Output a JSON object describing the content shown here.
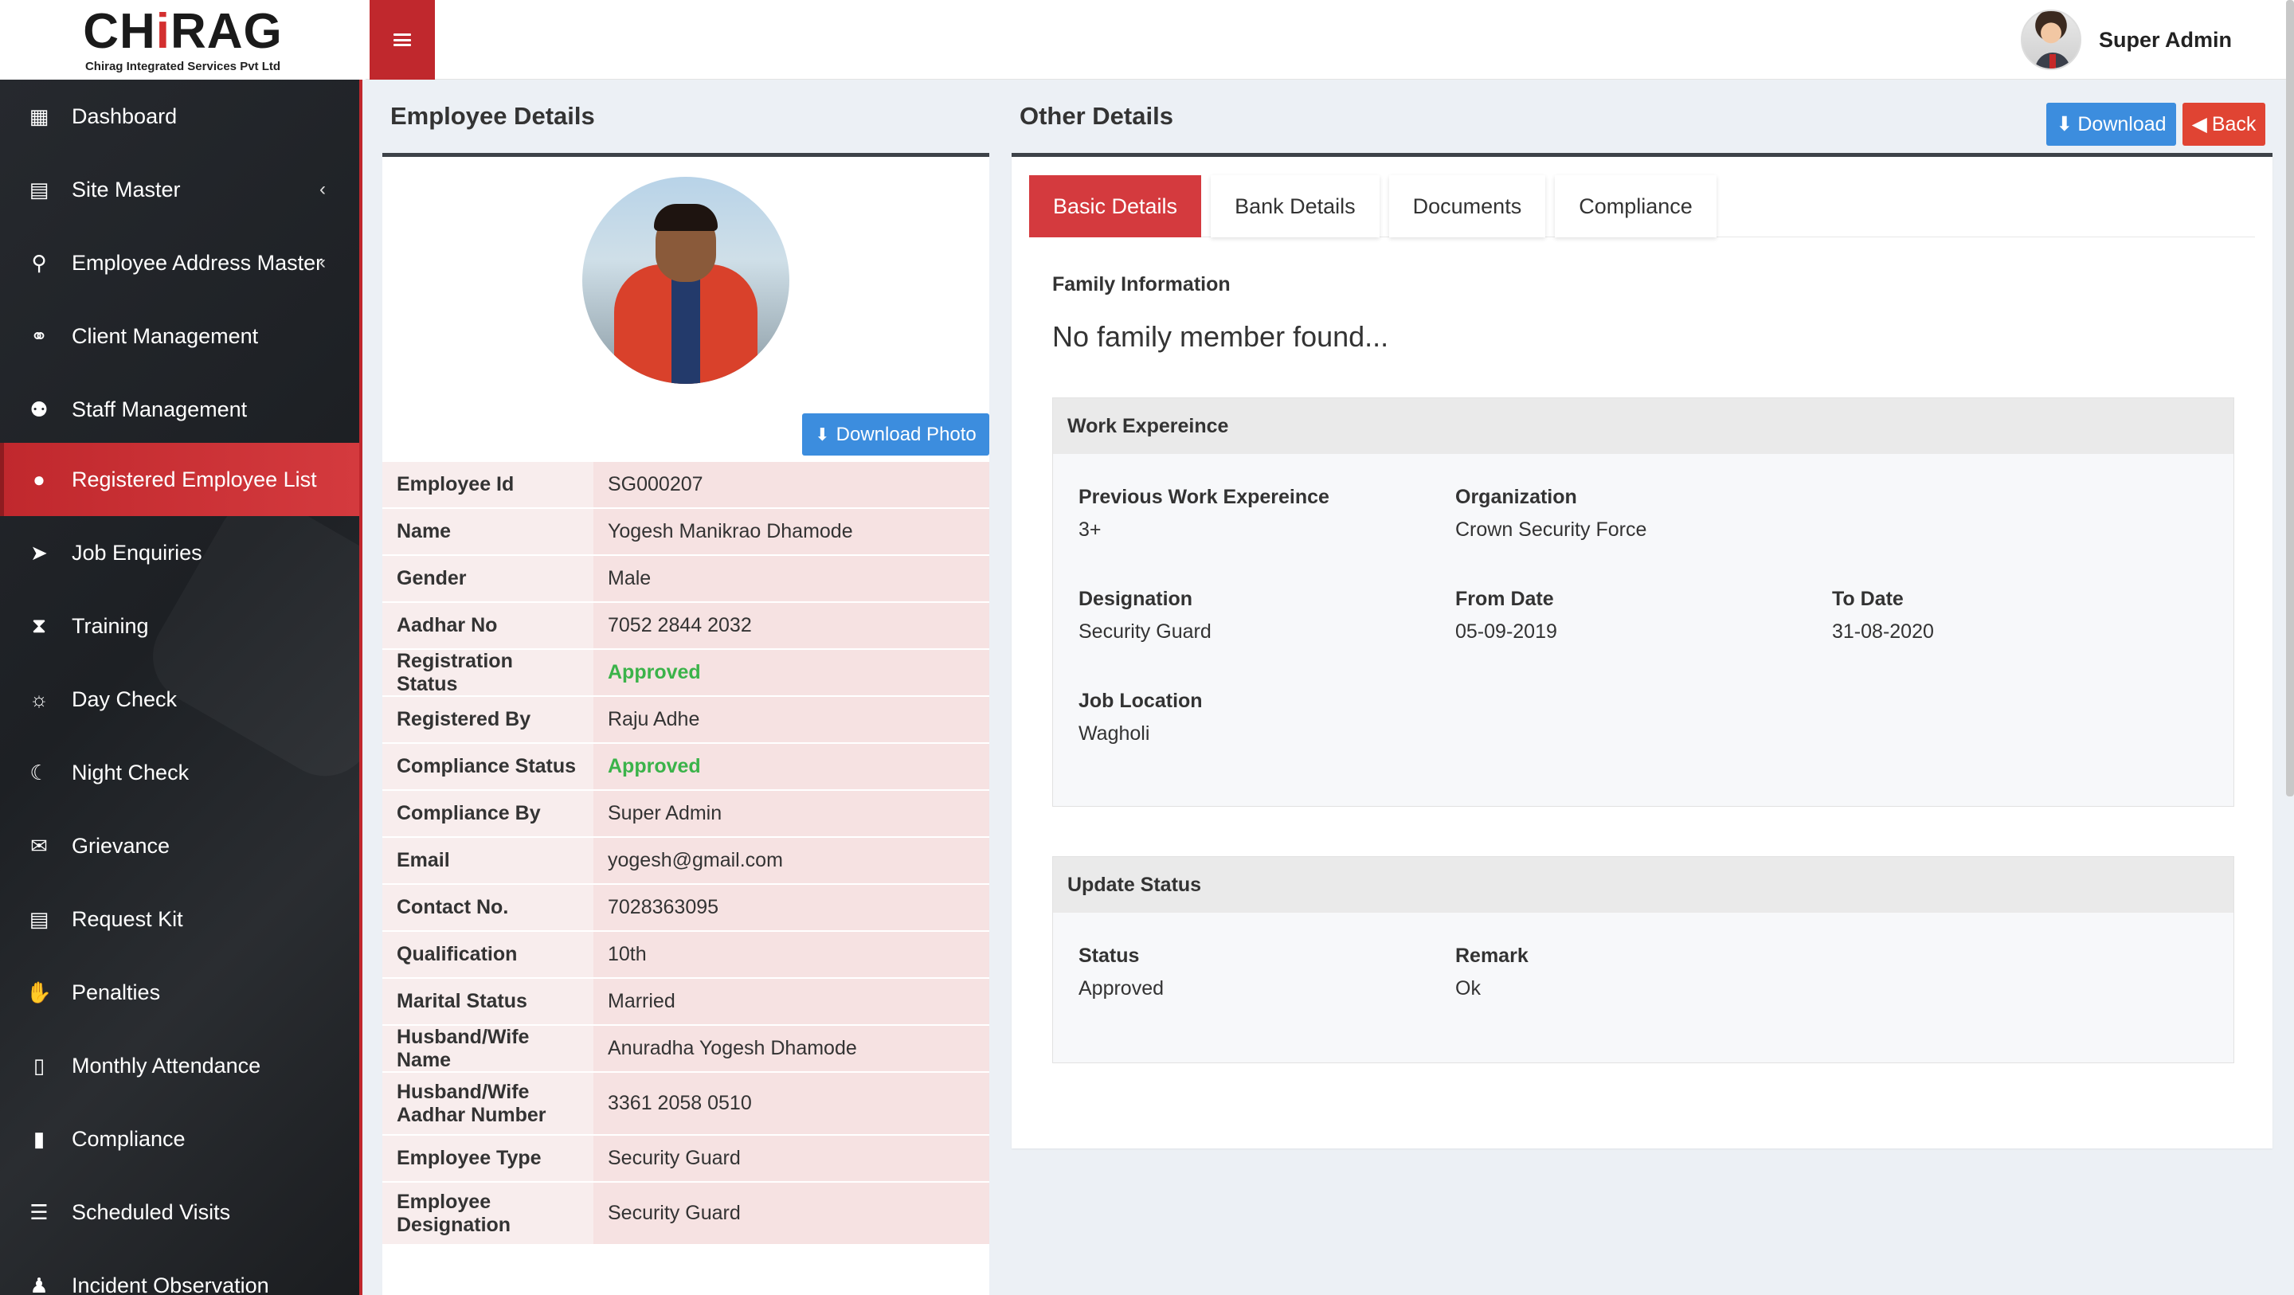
{
  "brand": {
    "logo_text_1": "CH",
    "logo_text_i": "i",
    "logo_text_2": "RAG",
    "subtitle": "Chirag Integrated Services Pvt Ltd",
    "accent_color": "#c0282d"
  },
  "header": {
    "user_name": "Super Admin",
    "menu_icon": "hamburger-icon"
  },
  "sidebar": {
    "items": [
      {
        "label": "Dashboard",
        "icon": "dashboard-icon",
        "glyph": "▦"
      },
      {
        "label": "Site Master",
        "icon": "table-icon",
        "glyph": "▤",
        "chevron": "‹"
      },
      {
        "label": "Employee Address Master",
        "icon": "map-pin-icon",
        "glyph": "⚲",
        "chevron": "‹"
      },
      {
        "label": "Client Management",
        "icon": "handshake-icon",
        "glyph": "⚭"
      },
      {
        "label": "Staff Management",
        "icon": "users-icon",
        "glyph": "⚉"
      },
      {
        "label": "Registered Employee List",
        "icon": "user-icon",
        "glyph": "●",
        "active": true
      },
      {
        "label": "Job Enquiries",
        "icon": "paper-plane-icon",
        "glyph": "➤"
      },
      {
        "label": "Training",
        "icon": "hourglass-icon",
        "glyph": "⧗"
      },
      {
        "label": "Day Check",
        "icon": "sun-icon",
        "glyph": "☼"
      },
      {
        "label": "Night Check",
        "icon": "moon-icon",
        "glyph": "☾"
      },
      {
        "label": "Grievance",
        "icon": "comments-icon",
        "glyph": "✉"
      },
      {
        "label": "Request Kit",
        "icon": "list-alt-icon",
        "glyph": "▤"
      },
      {
        "label": "Penalties",
        "icon": "hand-icon",
        "glyph": "✋"
      },
      {
        "label": "Monthly Attendance",
        "icon": "file-text-icon",
        "glyph": "▯"
      },
      {
        "label": "Compliance",
        "icon": "file-icon",
        "glyph": "▮"
      },
      {
        "label": "Scheduled Visits",
        "icon": "list-icon",
        "glyph": "☰"
      },
      {
        "label": "Incident Observation",
        "icon": "person-icon",
        "glyph": "♟"
      }
    ]
  },
  "employee_details": {
    "title": "Employee Details",
    "download_photo_label": "Download Photo",
    "rows": [
      {
        "key": "Employee Id",
        "value": "SG000207"
      },
      {
        "key": "Name",
        "value": "Yogesh Manikrao Dhamode"
      },
      {
        "key": "Gender",
        "value": "Male"
      },
      {
        "key": "Aadhar No",
        "value": "7052 2844 2032"
      },
      {
        "key": "Registration Status",
        "value": "Approved",
        "status": "green"
      },
      {
        "key": "Registered By",
        "value": "Raju Adhe"
      },
      {
        "key": "Compliance Status",
        "value": "Approved",
        "status": "green"
      },
      {
        "key": "Compliance By",
        "value": "Super Admin"
      },
      {
        "key": "Email",
        "value": "yogesh@gmail.com"
      },
      {
        "key": "Contact No.",
        "value": "7028363095"
      },
      {
        "key": "Qualification",
        "value": "10th"
      },
      {
        "key": "Marital Status",
        "value": "Married"
      },
      {
        "key": "Husband/Wife Name",
        "value": "Anuradha Yogesh Dhamode"
      },
      {
        "key": "Husband/Wife Aadhar Number",
        "value": "3361 2058 0510",
        "tall": true
      },
      {
        "key": "Employee Type",
        "value": "Security Guard"
      },
      {
        "key": "Employee Designation",
        "value": "Security Guard",
        "tall": true
      }
    ]
  },
  "other_details": {
    "title": "Other Details",
    "download_label": "Download",
    "back_label": "Back",
    "tabs": [
      "Basic Details",
      "Bank Details",
      "Documents",
      "Compliance"
    ],
    "active_tab": 0,
    "family_label": "Family Information",
    "family_empty": "No family member found...",
    "work": {
      "title": "Work Expereince",
      "previous_label": "Previous Work Expereince",
      "previous_value": "3+",
      "organization_label": "Organization",
      "organization_value": "Crown Security Force",
      "designation_label": "Designation",
      "designation_value": "Security Guard",
      "from_label": "From Date",
      "from_value": "05-09-2019",
      "to_label": "To Date",
      "to_value": "31-08-2020",
      "location_label": "Job Location",
      "location_value": "Wagholi"
    },
    "status": {
      "title": "Update Status",
      "status_label": "Status",
      "status_value": "Approved",
      "remark_label": "Remark",
      "remark_value": "Ok"
    }
  }
}
